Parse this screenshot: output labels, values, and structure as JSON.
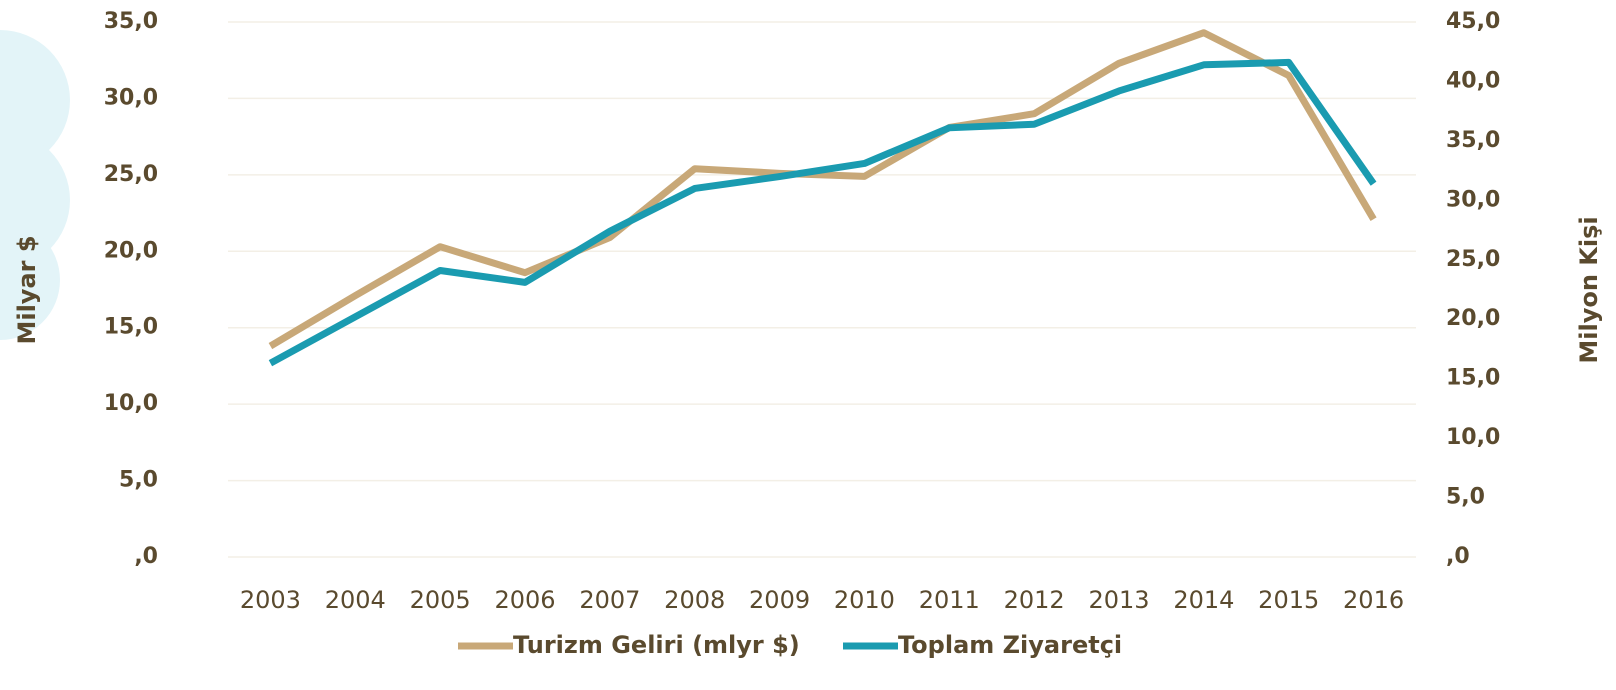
{
  "chart_data": {
    "type": "line",
    "categories": [
      "2003",
      "2004",
      "2005",
      "2006",
      "2007",
      "2008",
      "2009",
      "2010",
      "2011",
      "2012",
      "2013",
      "2014",
      "2015",
      "2016"
    ],
    "series": [
      {
        "name": "Turizm Geliri (mlyr $)",
        "color": "#c8a878",
        "values": [
          13.8,
          17.1,
          20.3,
          18.6,
          20.9,
          25.4,
          25.1,
          24.9,
          28.1,
          29.0,
          32.3,
          34.3,
          31.5,
          22.1
        ]
      },
      {
        "name": "Toplam Ziyaretçi",
        "color": "#1a9bb0",
        "axis": "y2",
        "values": [
          16.3,
          20.2,
          24.1,
          23.1,
          27.4,
          31.0,
          32.0,
          33.1,
          36.1,
          36.4,
          39.2,
          41.4,
          41.6,
          31.4
        ]
      }
    ],
    "ylabel": "Milyar $",
    "y2label": "Milyon Kişi",
    "ylim": [
      0,
      35
    ],
    "yticks": [
      {
        "value": 0,
        "label": ",0"
      },
      {
        "value": 5,
        "label": "5,0"
      },
      {
        "value": 10,
        "label": "10,0"
      },
      {
        "value": 15,
        "label": "15,0"
      },
      {
        "value": 20,
        "label": "20,0"
      },
      {
        "value": 25,
        "label": "25,0"
      },
      {
        "value": 30,
        "label": "30,0"
      },
      {
        "value": 35,
        "label": "35,0"
      }
    ],
    "y2lim": [
      0,
      45
    ],
    "y2ticks": [
      {
        "value": 0,
        "label": ",0"
      },
      {
        "value": 5,
        "label": "5,0"
      },
      {
        "value": 10,
        "label": "10,0"
      },
      {
        "value": 15,
        "label": "15,0"
      },
      {
        "value": 20,
        "label": "20,0"
      },
      {
        "value": 25,
        "label": "25,0"
      },
      {
        "value": 30,
        "label": "30,0"
      },
      {
        "value": 35,
        "label": "35,0"
      },
      {
        "value": 40,
        "label": "40,0"
      },
      {
        "value": 45,
        "label": "45,0"
      }
    ],
    "grid": true,
    "legend": "bottom"
  }
}
